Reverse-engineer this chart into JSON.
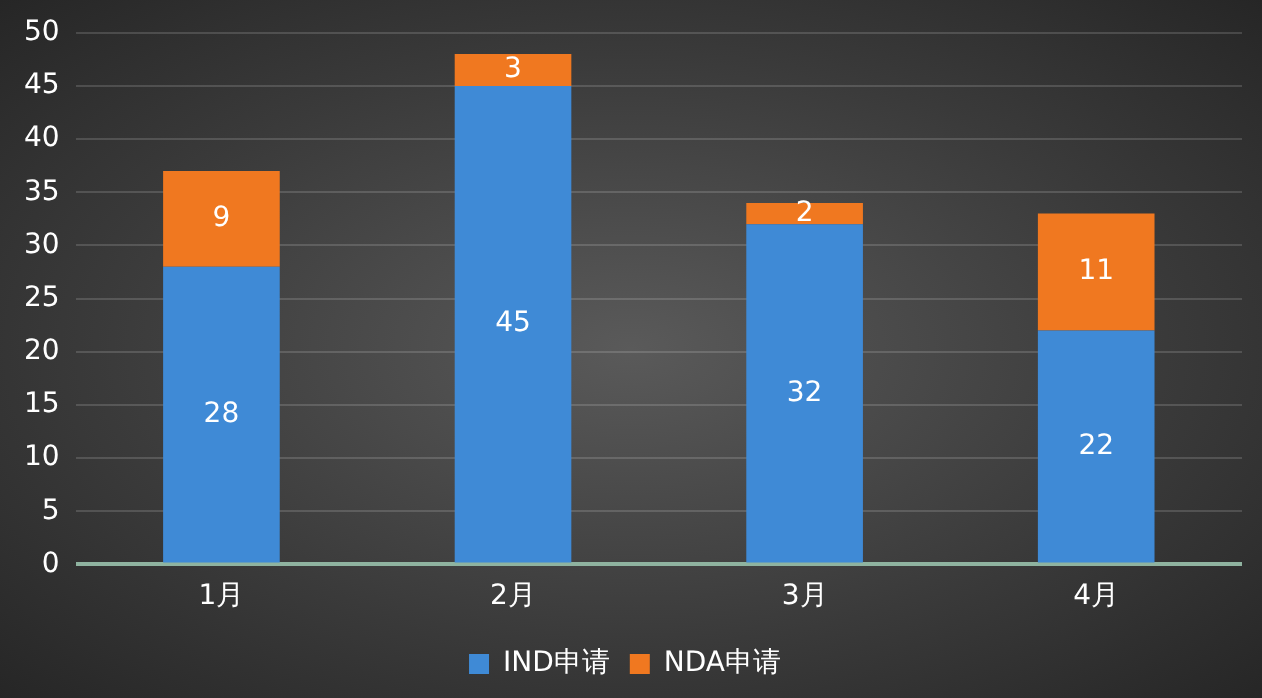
{
  "chart_data": {
    "type": "bar",
    "stacked": true,
    "categories": [
      "1月",
      "2月",
      "3月",
      "4月"
    ],
    "series": [
      {
        "name": "IND申请",
        "color": "#3f8ad6",
        "values": [
          28,
          45,
          32,
          22
        ]
      },
      {
        "name": "NDA申请",
        "color": "#f07820",
        "values": [
          9,
          3,
          2,
          11
        ]
      }
    ],
    "ylim": [
      0,
      50
    ],
    "yticks": [
      0,
      5,
      10,
      15,
      20,
      25,
      30,
      35,
      40,
      45,
      50
    ],
    "grid": "y",
    "legend": "bottom",
    "data_labels": true
  }
}
